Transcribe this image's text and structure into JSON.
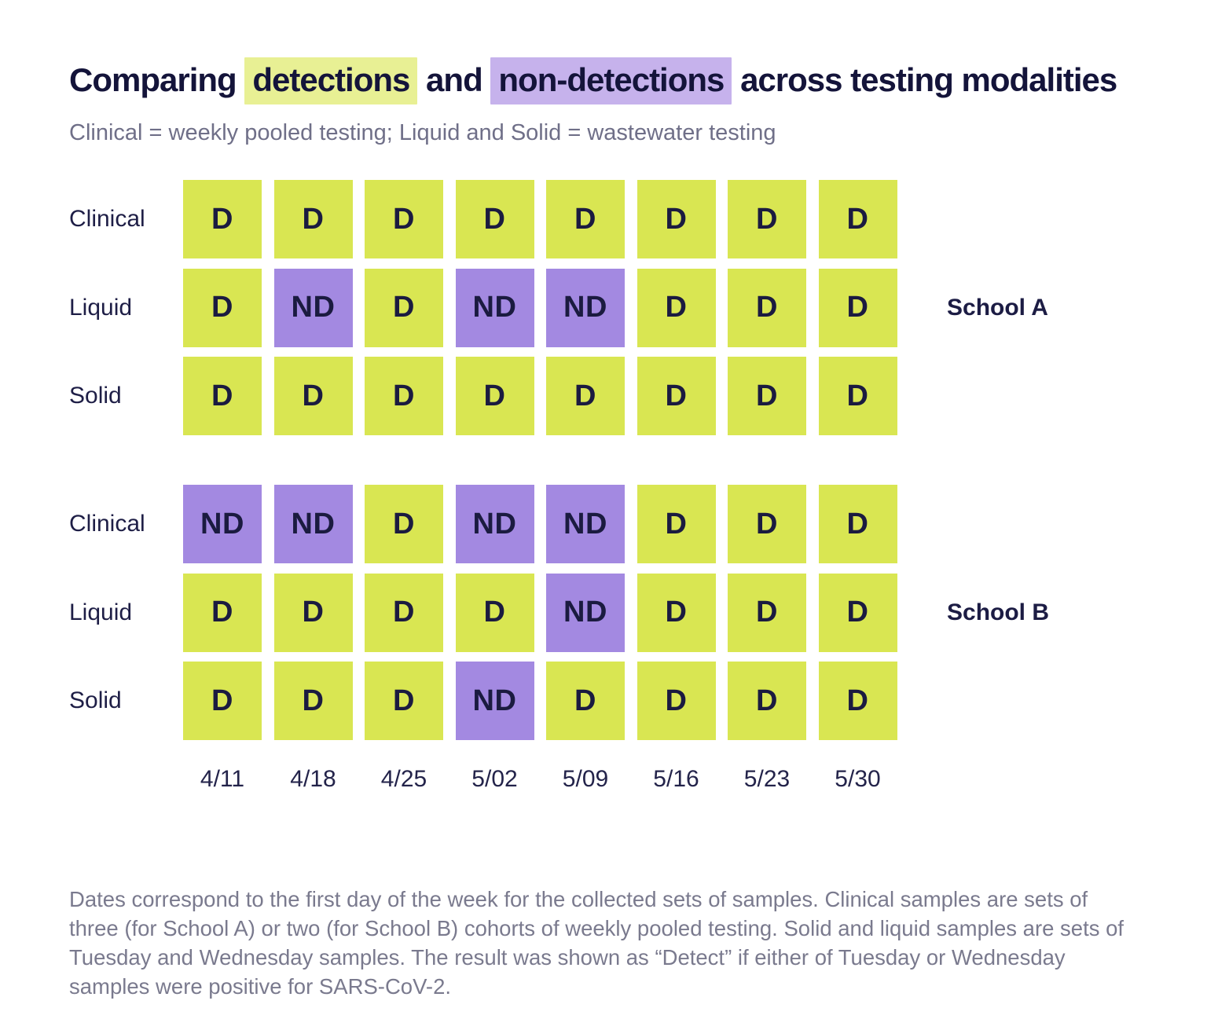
{
  "title": {
    "part1": "Comparing ",
    "highlight1": "detections",
    "part2": " and ",
    "highlight2": "non-detections",
    "part3": " across testing modalities"
  },
  "subtitle": "Clinical = weekly pooled testing; Liquid and Solid = wastewater testing",
  "colors": {
    "detect": "#d9e652",
    "non_detect": "#a389e1",
    "title_highlight_detect": "#e8f094",
    "title_highlight_non_detect": "#c6b2ec"
  },
  "chart_data": {
    "type": "heatmap",
    "columns": [
      "4/11",
      "4/18",
      "4/25",
      "5/02",
      "5/09",
      "5/16",
      "5/23",
      "5/30"
    ],
    "cell_values_legend": [
      "D",
      "ND"
    ],
    "groups": [
      {
        "name": "School A",
        "rows": [
          {
            "label": "Clinical",
            "values": [
              "D",
              "D",
              "D",
              "D",
              "D",
              "D",
              "D",
              "D"
            ]
          },
          {
            "label": "Liquid",
            "values": [
              "D",
              "ND",
              "D",
              "ND",
              "ND",
              "D",
              "D",
              "D"
            ]
          },
          {
            "label": "Solid",
            "values": [
              "D",
              "D",
              "D",
              "D",
              "D",
              "D",
              "D",
              "D"
            ]
          }
        ]
      },
      {
        "name": "School B",
        "rows": [
          {
            "label": "Clinical",
            "values": [
              "ND",
              "ND",
              "D",
              "ND",
              "ND",
              "D",
              "D",
              "D"
            ]
          },
          {
            "label": "Liquid",
            "values": [
              "D",
              "D",
              "D",
              "D",
              "ND",
              "D",
              "D",
              "D"
            ]
          },
          {
            "label": "Solid",
            "values": [
              "D",
              "D",
              "D",
              "ND",
              "D",
              "D",
              "D",
              "D"
            ]
          }
        ]
      }
    ]
  },
  "footnote": "Dates correspond to the first day of the week for the collected sets of samples. Clinical samples are sets of three (for School A) or two (for School B) cohorts of weekly pooled testing. Solid and liquid samples are sets of Tuesday and Wednesday samples. The result was shown as “Detect” if either of Tuesday or Wednesday samples were positive for SARS-CoV-2."
}
